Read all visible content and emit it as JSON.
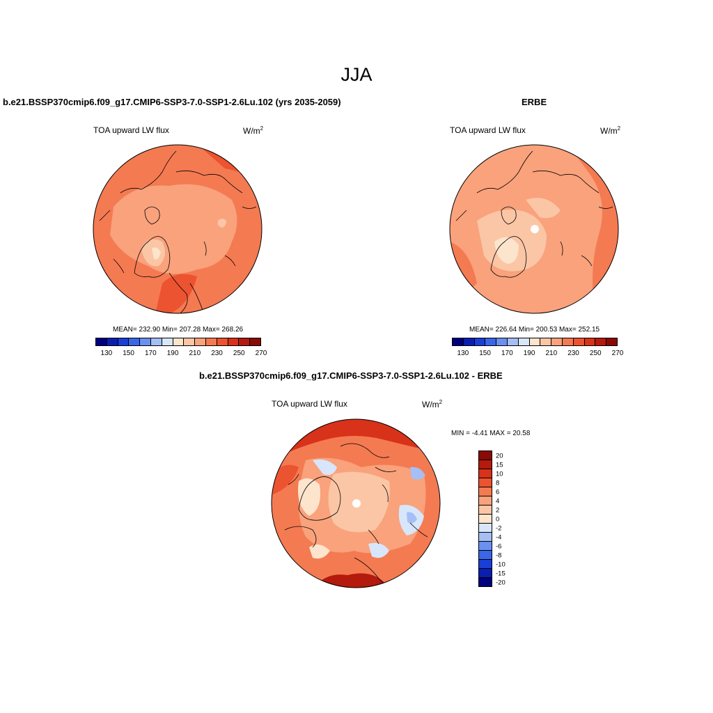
{
  "figure": {
    "title": "JJA"
  },
  "panels": {
    "model": {
      "title": "b.e21.BSSP370cmip6.f09_g17.CMIP6-SSP3-7.0-SSP1-2.6Lu.102 (yrs 2035-2059)",
      "variable": "TOA upward LW flux",
      "units": "W/m",
      "units_exp": "2",
      "stats": "MEAN= 232.90  Min= 207.28  Max= 268.26"
    },
    "obs": {
      "title": "ERBE",
      "variable": "TOA upward LW flux",
      "units": "W/m",
      "units_exp": "2",
      "stats": "MEAN= 226.64  Min= 200.53  Max= 252.15"
    },
    "diff": {
      "title": "b.e21.BSSP370cmip6.f09_g17.CMIP6-SSP3-7.0-SSP1-2.6Lu.102 - ERBE",
      "variable": "TOA upward LW flux",
      "units": "W/m",
      "units_exp": "2",
      "minmax": "MIN =  -4.41 MAX =  20.58"
    }
  },
  "colorbar_abs": {
    "labels": [
      "130",
      "150",
      "170",
      "190",
      "210",
      "230",
      "250",
      "270"
    ],
    "colors": [
      "#00007f",
      "#0a1fb0",
      "#1a3fd6",
      "#3a66e8",
      "#6a90f0",
      "#a5bff5",
      "#d7e6fa",
      "#fde4cc",
      "#fbc6a6",
      "#f9a27c",
      "#f47a52",
      "#ec5330",
      "#d8321a",
      "#b41a0d",
      "#8a0a05"
    ]
  },
  "colorbar_diff": {
    "labels": [
      "20",
      "15",
      "10",
      "8",
      "6",
      "4",
      "2",
      "0",
      "-2",
      "-4",
      "-6",
      "-8",
      "-10",
      "-15",
      "-20"
    ],
    "colors": [
      "#8a0a05",
      "#b41a0d",
      "#d8321a",
      "#ec5330",
      "#f47a52",
      "#f9a27c",
      "#fbc6a6",
      "#fde4cc",
      "#d7e6fa",
      "#a5bff5",
      "#6a90f0",
      "#3a66e8",
      "#1a3fd6",
      "#0a1fb0",
      "#00007f"
    ]
  }
}
